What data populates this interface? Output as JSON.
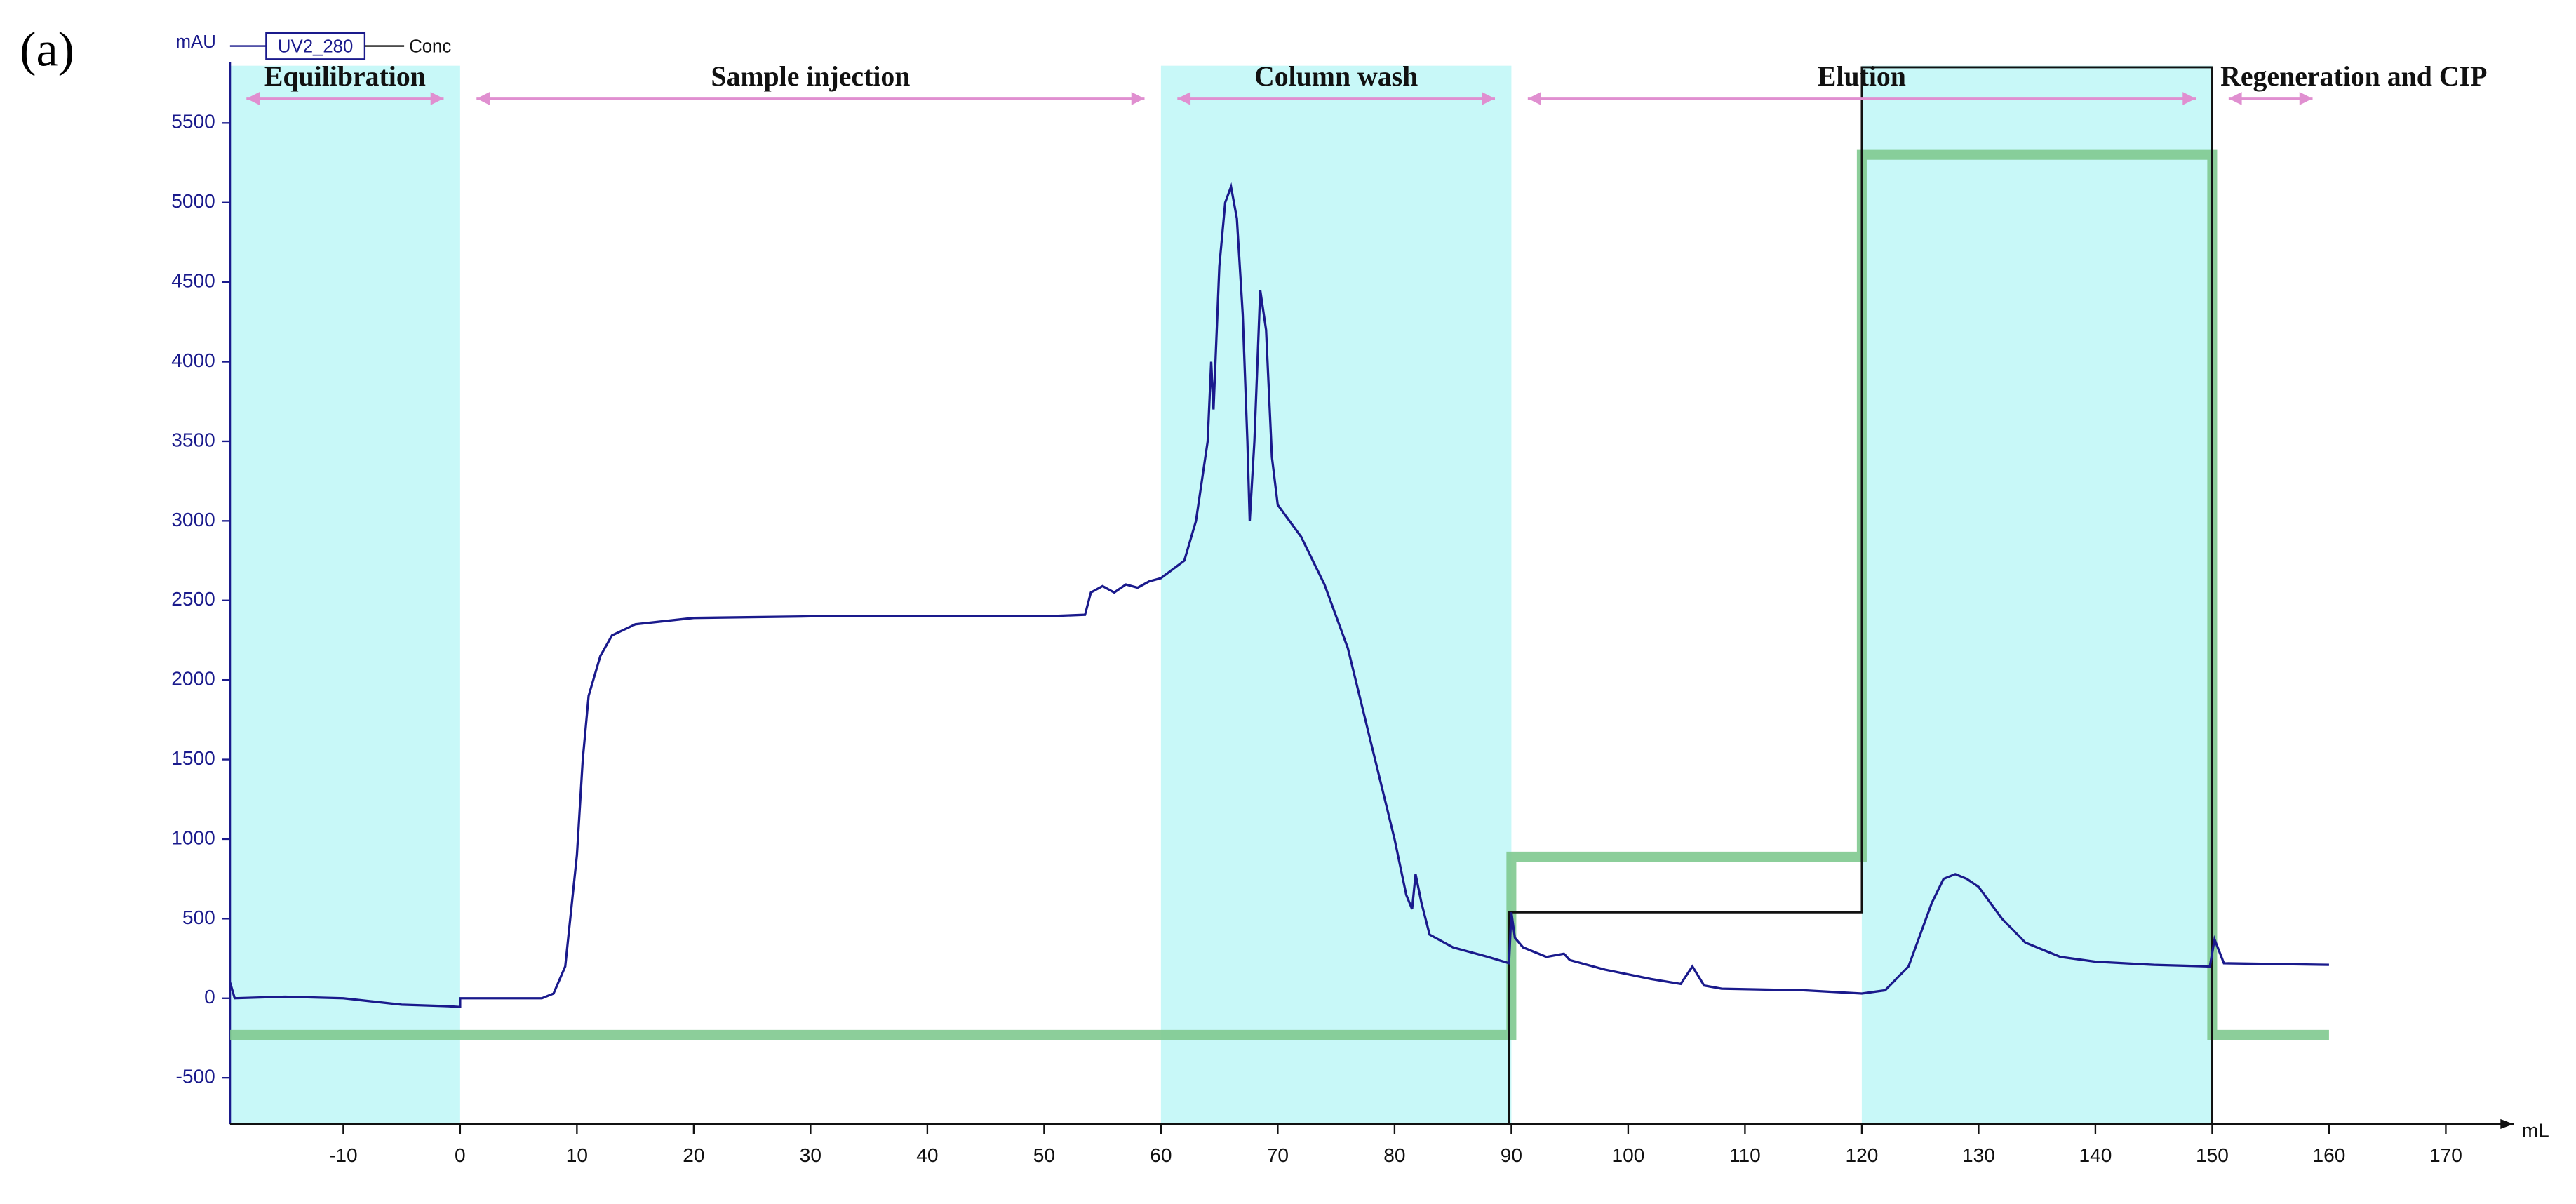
{
  "panel_label": "(a)",
  "chart_data": {
    "type": "line",
    "x_label": "mL",
    "y_label": "mAU",
    "xlim": [
      -19.7,
      175.8
    ],
    "ylim": [
      -790,
      5860
    ],
    "xticks": [
      -10,
      0,
      10,
      20,
      30,
      40,
      50,
      60,
      70,
      80,
      90,
      100,
      110,
      120,
      130,
      140,
      150,
      160,
      170
    ],
    "yticks": [
      -500,
      0,
      500,
      1000,
      1500,
      2000,
      2500,
      3000,
      3500,
      4000,
      4500,
      5000,
      5500
    ],
    "phases": [
      {
        "label": "Equilibration",
        "start": -19.7,
        "end": 0,
        "shaded": true
      },
      {
        "label": "Sample injection",
        "start": 0,
        "end": 60,
        "shaded": false
      },
      {
        "label": "Column wash",
        "start": 60,
        "end": 90,
        "shaded": true
      },
      {
        "label": "Elution",
        "start": 90,
        "end": 150,
        "shaded": false
      },
      {
        "label": "Regeneration and CIP",
        "start": 150,
        "end": 160,
        "shaded": false
      }
    ],
    "elution_window": {
      "start": 120,
      "end": 150
    },
    "shade_color": "#c8f8f8",
    "series": [
      {
        "color": "#7fc98f",
        "x": [
          -19.7,
          90,
          90,
          120,
          120,
          150,
          150,
          160
        ],
        "values": [
          -230,
          -230,
          890,
          890,
          5300,
          5300,
          -230,
          -230
        ]
      },
      {
        "name": "Conc",
        "color": "#111111",
        "x": [
          89.8,
          89.8,
          120,
          120,
          150,
          150
        ],
        "values": [
          -790,
          540,
          540,
          5850,
          5850,
          -790
        ]
      },
      {
        "name": "UV2_280",
        "color": "#1a1a8c",
        "x": [
          -19.7,
          -19.3,
          -15,
          -10,
          -5,
          -1,
          0,
          0,
          7,
          8,
          9,
          10,
          10.5,
          11,
          12,
          13,
          15,
          20,
          30,
          40,
          50,
          53.5,
          54,
          55,
          56,
          57,
          58,
          59,
          60,
          62,
          63,
          64,
          64.3,
          64.5,
          65,
          65.5,
          66,
          66.5,
          67,
          67.4,
          67.6,
          68,
          68.5,
          69,
          69.5,
          70,
          72,
          74,
          76,
          78,
          80,
          81,
          81.5,
          81.8,
          82.3,
          83,
          85,
          88,
          89.8,
          90,
          90.3,
          91,
          93,
          94.5,
          95,
          98,
          102,
          104.5,
          105.5,
          106.5,
          108,
          115,
          120,
          122,
          124,
          126,
          127,
          128,
          129,
          130,
          132,
          134,
          137,
          140,
          145,
          149.8,
          150.2,
          151,
          160
        ],
        "values": [
          100,
          0,
          10,
          0,
          -40,
          -50,
          -55,
          0,
          0,
          30,
          200,
          900,
          1500,
          1900,
          2150,
          2280,
          2350,
          2390,
          2400,
          2400,
          2400,
          2410,
          2550,
          2590,
          2550,
          2600,
          2580,
          2620,
          2640,
          2750,
          3000,
          3500,
          4000,
          3700,
          4600,
          5000,
          5100,
          4900,
          4300,
          3500,
          3000,
          3500,
          4450,
          4200,
          3400,
          3100,
          2900,
          2600,
          2200,
          1600,
          1000,
          650,
          560,
          780,
          600,
          400,
          320,
          260,
          220,
          540,
          380,
          320,
          260,
          280,
          240,
          180,
          120,
          90,
          200,
          80,
          60,
          50,
          30,
          50,
          200,
          600,
          750,
          780,
          750,
          700,
          500,
          350,
          260,
          230,
          210,
          200,
          370,
          220,
          210
        ]
      }
    ]
  }
}
